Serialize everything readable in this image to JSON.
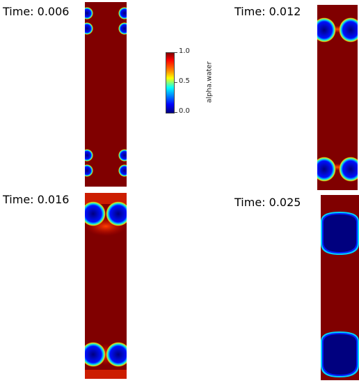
{
  "panels": [
    {
      "time_label": "Time: 0.006"
    },
    {
      "time_label": "Time: 0.012"
    },
    {
      "time_label": "Time: 0.016"
    },
    {
      "time_label": "Time: 0.025"
    }
  ],
  "colorbar": {
    "title": "alpha.water",
    "max_label": "1.0",
    "mid_label": "0.5",
    "min_label": "0.0",
    "colormap": [
      "#00007f",
      "#0000ff",
      "#0080ff",
      "#00ffff",
      "#ffff00",
      "#ff8a00",
      "#ff0000",
      "#800000"
    ]
  }
}
